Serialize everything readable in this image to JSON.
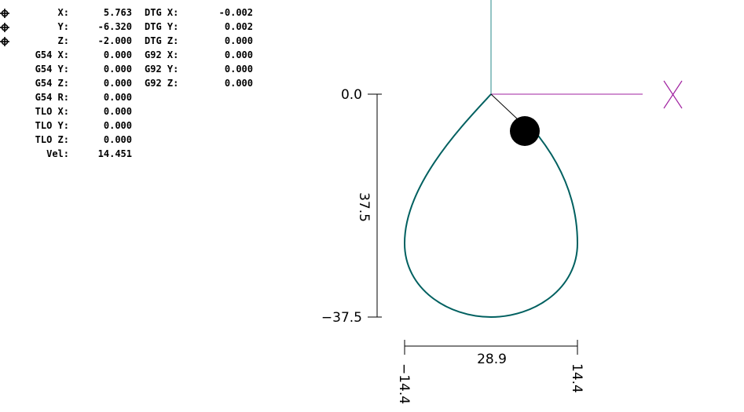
{
  "dro": {
    "axes": [
      {
        "label": "X:",
        "value": "5.763",
        "dtg_label": "DTG X:",
        "dtg_value": "-0.002",
        "homed": true
      },
      {
        "label": "Y:",
        "value": "-6.320",
        "dtg_label": "DTG Y:",
        "dtg_value": "0.002",
        "homed": true
      },
      {
        "label": "Z:",
        "value": "-2.000",
        "dtg_label": "DTG Z:",
        "dtg_value": "0.000",
        "homed": true
      }
    ],
    "g54": [
      {
        "label": "G54 X:",
        "value": "0.000",
        "g92_label": "G92 X:",
        "g92_value": "0.000"
      },
      {
        "label": "G54 Y:",
        "value": "0.000",
        "g92_label": "G92 Y:",
        "g92_value": "0.000"
      },
      {
        "label": "G54 Z:",
        "value": "0.000",
        "g92_label": "G92 Z:",
        "g92_value": "0.000"
      },
      {
        "label": "G54 R:",
        "value": "0.000"
      }
    ],
    "tlo": [
      {
        "label": "TLO X:",
        "value": "0.000"
      },
      {
        "label": "TLO Y:",
        "value": "0.000"
      },
      {
        "label": "TLO Z:",
        "value": "0.000"
      }
    ],
    "vel": {
      "label": "Vel:",
      "value": "14.451"
    }
  },
  "plot": {
    "y_dimension": {
      "top": "0.0",
      "span": "37.5",
      "bottom": "−37.5"
    },
    "x_dimension": {
      "span": "28.9",
      "left": "−14.4",
      "right": "14.4"
    },
    "colors": {
      "toolpath": "#006060",
      "y_axis_line": "#2a8a8a",
      "x_axis_line": "#a020a0",
      "tool": "#000000"
    },
    "icons": {
      "homed": "homed-crosshair-icon",
      "x_axis": "x-axis-icon",
      "tool": "tool-marker-icon"
    }
  }
}
